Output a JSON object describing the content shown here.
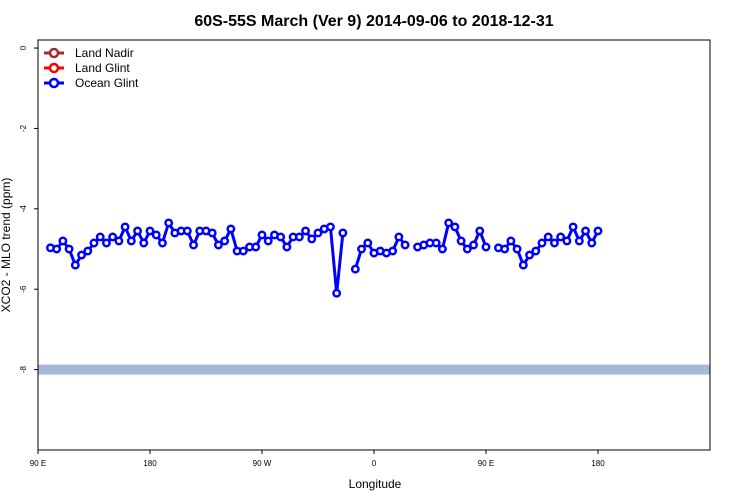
{
  "chart_data": {
    "type": "line",
    "title": "60S-55S March (Ver 9)   2014-09-06 to 2018-12-31",
    "xlabel": "Longitude",
    "ylabel": "XCO2 - MLO trend (ppm)",
    "xlim": [
      0,
      540
    ],
    "ylim": [
      -10,
      0.2
    ],
    "x_ticks": [
      {
        "value": 0,
        "label": "90 E"
      },
      {
        "value": 90,
        "label": "180"
      },
      {
        "value": 180,
        "label": "90 W"
      },
      {
        "value": 270,
        "label": "0"
      },
      {
        "value": 360,
        "label": "90 E"
      },
      {
        "value": 450,
        "label": "180"
      }
    ],
    "y_ticks": [
      0,
      -2,
      -4,
      -6,
      -8
    ],
    "legend": {
      "position": "top-left",
      "entries": [
        {
          "name": "Land Nadir",
          "color": "#a52a2a"
        },
        {
          "name": "Land Glint",
          "color": "#ff0000"
        },
        {
          "name": "Ocean Glint",
          "color": "#0000ff"
        }
      ]
    },
    "band": {
      "y": -8,
      "color": "#a5b8d8"
    },
    "series": [
      {
        "name": "Ocean Glint",
        "color": "#0000ff",
        "segments": [
          [
            [
              10,
              -4.97
            ],
            [
              15,
              -5.0
            ],
            [
              20,
              -4.8
            ],
            [
              25,
              -5.0
            ],
            [
              30,
              -5.4
            ],
            [
              35,
              -5.15
            ],
            [
              40,
              -5.05
            ],
            [
              45,
              -4.85
            ],
            [
              50,
              -4.7
            ],
            [
              55,
              -4.85
            ],
            [
              60,
              -4.7
            ],
            [
              65,
              -4.8
            ],
            [
              70,
              -4.45
            ],
            [
              75,
              -4.8
            ],
            [
              80,
              -4.55
            ],
            [
              85,
              -4.85
            ],
            [
              90,
              -4.55
            ],
            [
              95,
              -4.65
            ],
            [
              100,
              -4.85
            ],
            [
              105,
              -4.35
            ],
            [
              110,
              -4.6
            ],
            [
              115,
              -4.55
            ],
            [
              120,
              -4.55
            ],
            [
              125,
              -4.9
            ],
            [
              130,
              -4.55
            ],
            [
              135,
              -4.55
            ],
            [
              140,
              -4.6
            ],
            [
              145,
              -4.9
            ],
            [
              150,
              -4.8
            ],
            [
              155,
              -4.5
            ],
            [
              160,
              -5.05
            ],
            [
              165,
              -5.05
            ],
            [
              170,
              -4.95
            ],
            [
              175,
              -4.95
            ],
            [
              180,
              -4.65
            ],
            [
              185,
              -4.8
            ],
            [
              190,
              -4.65
            ],
            [
              195,
              -4.7
            ],
            [
              200,
              -4.95
            ],
            [
              205,
              -4.7
            ],
            [
              210,
              -4.7
            ],
            [
              215,
              -4.55
            ],
            [
              220,
              -4.75
            ],
            [
              225,
              -4.6
            ],
            [
              230,
              -4.5
            ],
            [
              235,
              -4.45
            ],
            [
              240,
              -6.1
            ],
            [
              245,
              -4.6
            ]
          ],
          [
            [
              255,
              -5.5
            ],
            [
              260,
              -5.0
            ],
            [
              265,
              -4.85
            ],
            [
              270,
              -5.1
            ],
            [
              275,
              -5.05
            ],
            [
              280,
              -5.1
            ],
            [
              285,
              -5.05
            ],
            [
              290,
              -4.7
            ],
            [
              295,
              -4.9
            ]
          ],
          [
            [
              305,
              -4.95
            ],
            [
              310,
              -4.9
            ],
            [
              315,
              -4.85
            ],
            [
              320,
              -4.85
            ],
            [
              325,
              -5.0
            ],
            [
              330,
              -4.35
            ],
            [
              335,
              -4.45
            ],
            [
              340,
              -4.8
            ],
            [
              345,
              -5.0
            ],
            [
              350,
              -4.9
            ],
            [
              355,
              -4.55
            ],
            [
              360,
              -4.95
            ]
          ],
          [
            [
              370,
              -4.97
            ],
            [
              375,
              -5.0
            ],
            [
              380,
              -4.8
            ],
            [
              385,
              -5.0
            ],
            [
              390,
              -5.4
            ],
            [
              395,
              -5.15
            ],
            [
              400,
              -5.05
            ],
            [
              405,
              -4.85
            ],
            [
              410,
              -4.7
            ],
            [
              415,
              -4.85
            ],
            [
              420,
              -4.7
            ],
            [
              425,
              -4.8
            ],
            [
              430,
              -4.45
            ],
            [
              435,
              -4.8
            ],
            [
              440,
              -4.55
            ],
            [
              445,
              -4.85
            ],
            [
              450,
              -4.55
            ]
          ]
        ]
      }
    ]
  }
}
